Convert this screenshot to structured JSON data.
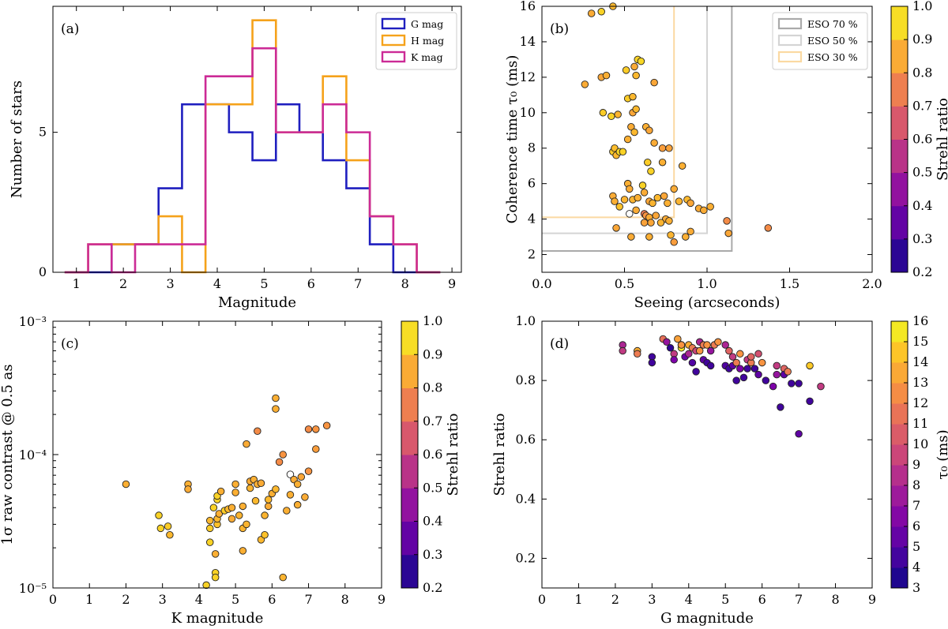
{
  "chart_data": [
    {
      "id": "a",
      "type": "histogram",
      "panel_label": "(a)",
      "xlabel": "Magnitude",
      "ylabel": "Number of stars",
      "xlim": [
        0.5,
        9.2
      ],
      "ylim": [
        0,
        9.5
      ],
      "xticks": [
        1,
        2,
        3,
        4,
        5,
        6,
        7,
        8,
        9
      ],
      "yticks": [
        0,
        5
      ],
      "legend": "top-right",
      "bin_edges": [
        0.75,
        1.25,
        1.75,
        2.25,
        2.75,
        3.25,
        3.75,
        4.25,
        4.75,
        5.25,
        5.75,
        6.25,
        6.75,
        7.25,
        7.75,
        8.25,
        8.75
      ],
      "series": [
        {
          "name": "G mag",
          "color": "#1f1fbf",
          "counts": [
            0,
            0,
            1,
            1,
            3,
            6,
            6,
            5,
            4,
            6,
            5,
            4,
            3,
            1,
            0,
            0
          ]
        },
        {
          "name": "H mag",
          "color": "#f5a21b",
          "counts": [
            0,
            1,
            1,
            1,
            2,
            0,
            6,
            6,
            9,
            5,
            5,
            7,
            4,
            2,
            1,
            0
          ]
        },
        {
          "name": "K mag",
          "color": "#cc2b96",
          "counts": [
            0,
            1,
            0,
            1,
            1,
            1,
            7,
            7,
            8,
            5,
            5,
            6,
            5,
            2,
            1,
            0
          ]
        }
      ]
    },
    {
      "id": "b",
      "type": "scatter",
      "panel_label": "(b)",
      "xlabel": "Seeing (arcseconds)",
      "ylabel": "Coherence time τ₀ (ms)",
      "xlim": [
        0,
        2.0
      ],
      "ylim": [
        1,
        16
      ],
      "xticks": [
        0.0,
        0.5,
        1.0,
        1.5,
        2.0
      ],
      "xticklabels": [
        "0.0",
        "0.5",
        "1.0",
        "1.5",
        "2.0"
      ],
      "yticks": [
        2,
        4,
        6,
        8,
        10,
        12,
        14,
        16
      ],
      "legend": "top-right",
      "colorbar": {
        "label": "Strehl ratio",
        "min": 0.2,
        "max": 1.0,
        "ticks": [
          0.2,
          0.3,
          0.4,
          0.5,
          0.6,
          0.7,
          0.8,
          0.9,
          1.0
        ],
        "ticklabels": [
          "0.2",
          "0.3",
          "0.4",
          "0.5",
          "0.6",
          "0.7",
          "0.8",
          "0.9",
          "1.0"
        ]
      },
      "lines": [
        {
          "name": "ESO 70 %",
          "color": "#aaaaaa",
          "seeing": 1.15,
          "tau0": 2.2
        },
        {
          "name": "ESO 50 %",
          "color": "#d4d4d4",
          "seeing": 1.0,
          "tau0": 3.2
        },
        {
          "name": "ESO 30 %",
          "color": "#fbd9a2",
          "seeing": 0.8,
          "tau0": 4.1
        }
      ],
      "points": [
        [
          0.3,
          15.6,
          0.85
        ],
        [
          0.36,
          15.7,
          0.93
        ],
        [
          0.43,
          16.0,
          0.88
        ],
        [
          0.26,
          11.6,
          0.85
        ],
        [
          0.36,
          12.0,
          0.84
        ],
        [
          0.39,
          12.1,
          0.86
        ],
        [
          0.51,
          12.4,
          0.92
        ],
        [
          0.57,
          12.1,
          0.88
        ],
        [
          0.56,
          12.6,
          0.85
        ],
        [
          0.58,
          13.0,
          0.93
        ],
        [
          0.6,
          12.9,
          0.94
        ],
        [
          0.68,
          11.7,
          0.84
        ],
        [
          0.37,
          10.0,
          0.92
        ],
        [
          0.42,
          9.8,
          0.93
        ],
        [
          0.46,
          9.9,
          0.87
        ],
        [
          0.52,
          10.8,
          0.92
        ],
        [
          0.55,
          10.9,
          0.88
        ],
        [
          0.55,
          10.0,
          0.84
        ],
        [
          0.57,
          10.2,
          0.88
        ],
        [
          0.43,
          7.8,
          0.92
        ],
        [
          0.44,
          8.0,
          0.89
        ],
        [
          0.45,
          7.6,
          0.88
        ],
        [
          0.47,
          7.8,
          0.94
        ],
        [
          0.49,
          7.8,
          0.93
        ],
        [
          0.52,
          8.5,
          0.86
        ],
        [
          0.54,
          9.2,
          0.85
        ],
        [
          0.56,
          8.9,
          0.88
        ],
        [
          0.63,
          9.2,
          0.86
        ],
        [
          0.65,
          9.0,
          0.84
        ],
        [
          0.68,
          8.3,
          0.85
        ],
        [
          0.73,
          8.0,
          0.82
        ],
        [
          0.64,
          7.2,
          0.92
        ],
        [
          0.66,
          6.7,
          0.93
        ],
        [
          0.73,
          7.2,
          0.86
        ],
        [
          0.77,
          8.0,
          0.83
        ],
        [
          0.85,
          7.0,
          0.86
        ],
        [
          0.61,
          5.9,
          0.93
        ],
        [
          0.52,
          6.0,
          0.86
        ],
        [
          0.53,
          5.7,
          0.85
        ],
        [
          0.55,
          5.1,
          0.87
        ],
        [
          0.58,
          5.2,
          0.86
        ],
        [
          0.5,
          5.1,
          0.87
        ],
        [
          0.47,
          4.7,
          0.9
        ],
        [
          0.43,
          5.3,
          0.85
        ],
        [
          0.44,
          5.0,
          0.86
        ],
        [
          0.62,
          5.5,
          0.85
        ],
        [
          0.65,
          5.0,
          0.84
        ],
        [
          0.67,
          4.9,
          0.87
        ],
        [
          0.7,
          5.2,
          0.88
        ],
        [
          0.74,
          5.3,
          0.84
        ],
        [
          0.8,
          5.7,
          0.85
        ],
        [
          0.76,
          4.9,
          0.86
        ],
        [
          0.83,
          5.0,
          0.87
        ],
        [
          0.88,
          5.1,
          0.88
        ],
        [
          0.9,
          4.9,
          0.84
        ],
        [
          0.95,
          4.6,
          0.85
        ],
        [
          0.98,
          4.5,
          0.85
        ],
        [
          1.02,
          4.7,
          0.86
        ],
        [
          0.57,
          4.5,
          0.85
        ],
        [
          0.62,
          4.3,
          0.74
        ],
        [
          0.63,
          4.2,
          0.8
        ],
        [
          0.65,
          4.1,
          0.85
        ],
        [
          0.69,
          4.2,
          0.84
        ],
        [
          0.75,
          4.0,
          0.85
        ],
        [
          0.77,
          3.9,
          0.86
        ],
        [
          0.72,
          3.8,
          0.87
        ],
        [
          0.66,
          3.8,
          0.84
        ],
        [
          0.62,
          3.8,
          0.83
        ],
        [
          0.53,
          4.3,
          1.0
        ],
        [
          0.45,
          3.5,
          0.84
        ],
        [
          0.54,
          3.0,
          0.85
        ],
        [
          0.65,
          3.0,
          0.86
        ],
        [
          0.78,
          3.1,
          0.87
        ],
        [
          0.8,
          2.7,
          0.82
        ],
        [
          0.87,
          3.0,
          0.86
        ],
        [
          0.9,
          3.3,
          0.85
        ],
        [
          1.12,
          3.9,
          0.78
        ],
        [
          1.13,
          3.2,
          0.84
        ],
        [
          1.37,
          3.5,
          0.78
        ]
      ]
    },
    {
      "id": "c",
      "type": "scatter",
      "panel_label": "(c)",
      "xlabel": "K magnitude",
      "ylabel": "1σ raw contrast @ 0.5 as",
      "yscale": "log",
      "xlim": [
        0,
        9
      ],
      "ylim": [
        1e-05,
        0.001
      ],
      "xticks": [
        0,
        1,
        2,
        3,
        4,
        5,
        6,
        7,
        8,
        9
      ],
      "yticklabels": [
        "10⁻⁵",
        "10⁻⁴",
        "10⁻³"
      ],
      "colorbar": {
        "label": "Strehl ratio",
        "min": 0.2,
        "max": 1.0,
        "ticks": [
          0.2,
          0.3,
          0.4,
          0.5,
          0.6,
          0.7,
          0.8,
          0.9,
          1.0
        ],
        "ticklabels": [
          "0.2",
          "0.3",
          "0.4",
          "0.5",
          "0.6",
          "0.7",
          "0.8",
          "0.9",
          "1.0"
        ]
      },
      "points": [
        [
          2.0,
          6e-05,
          0.86
        ],
        [
          2.9,
          3.5e-05,
          0.93
        ],
        [
          2.95,
          2.8e-05,
          0.93
        ],
        [
          3.15,
          2.9e-05,
          0.92
        ],
        [
          3.2,
          2.5e-05,
          0.88
        ],
        [
          3.7,
          6e-05,
          0.86
        ],
        [
          3.7,
          5.5e-05,
          0.85
        ],
        [
          4.2,
          1.05e-05,
          0.93
        ],
        [
          4.3,
          2.2e-05,
          0.93
        ],
        [
          4.3,
          2.8e-05,
          0.92
        ],
        [
          4.3,
          3.2e-05,
          0.88
        ],
        [
          4.4,
          4e-05,
          0.93
        ],
        [
          4.45,
          1.3e-05,
          0.93
        ],
        [
          4.45,
          1.2e-05,
          0.93
        ],
        [
          4.45,
          1.8e-05,
          0.86
        ],
        [
          4.5,
          3e-05,
          0.9
        ],
        [
          4.5,
          3.3e-05,
          0.88
        ],
        [
          4.55,
          3.6e-05,
          0.86
        ],
        [
          4.5,
          4.6e-05,
          0.93
        ],
        [
          4.5,
          4.9e-05,
          0.93
        ],
        [
          4.6,
          5.3e-05,
          0.86
        ],
        [
          4.7,
          3.8e-05,
          0.92
        ],
        [
          4.8,
          3.9e-05,
          0.88
        ],
        [
          4.9,
          4e-05,
          0.86
        ],
        [
          4.9,
          3.3e-05,
          0.85
        ],
        [
          5.0,
          5.2e-05,
          0.86
        ],
        [
          5.0,
          6e-05,
          0.86
        ],
        [
          5.1,
          3.5e-05,
          0.87
        ],
        [
          5.2,
          4.1e-05,
          0.86
        ],
        [
          5.2,
          2.8e-05,
          0.87
        ],
        [
          5.2,
          1.9e-05,
          0.86
        ],
        [
          5.3,
          3e-05,
          0.87
        ],
        [
          5.3,
          0.00012,
          0.85
        ],
        [
          5.4,
          5.6e-05,
          0.87
        ],
        [
          5.4,
          6.3e-05,
          0.85
        ],
        [
          5.5,
          6.5e-05,
          0.86
        ],
        [
          5.55,
          4.5e-05,
          0.88
        ],
        [
          5.6,
          6e-05,
          0.86
        ],
        [
          5.6,
          0.00015,
          0.78
        ],
        [
          5.7,
          6.1e-05,
          0.85
        ],
        [
          5.7,
          2.3e-05,
          0.88
        ],
        [
          5.8,
          2.5e-05,
          0.9
        ],
        [
          5.8,
          3.5e-05,
          0.87
        ],
        [
          5.9,
          4.1e-05,
          0.85
        ],
        [
          5.9,
          4.6e-05,
          0.88
        ],
        [
          6.0,
          5.1e-05,
          0.86
        ],
        [
          6.1,
          0.000265,
          0.86
        ],
        [
          6.1,
          0.00022,
          0.86
        ],
        [
          6.1,
          5.5e-05,
          0.88
        ],
        [
          6.2,
          8.8e-05,
          0.78
        ],
        [
          6.3,
          1.2e-05,
          0.87
        ],
        [
          6.3,
          0.0001,
          0.8
        ],
        [
          6.4,
          3.8e-05,
          0.86
        ],
        [
          6.5,
          7.1e-05,
          1.0
        ],
        [
          6.5,
          5e-05,
          0.86
        ],
        [
          6.6,
          6.5e-05,
          0.85
        ],
        [
          6.7,
          6e-05,
          0.86
        ],
        [
          6.7,
          4.2e-05,
          0.86
        ],
        [
          6.8,
          6.8e-05,
          0.84
        ],
        [
          6.9,
          4.8e-05,
          0.85
        ],
        [
          7.0,
          7.5e-05,
          0.8
        ],
        [
          7.0,
          0.000155,
          0.78
        ],
        [
          7.2,
          0.000155,
          0.8
        ],
        [
          7.2,
          0.00011,
          0.82
        ],
        [
          7.5,
          0.000165,
          0.8
        ]
      ]
    },
    {
      "id": "d",
      "type": "scatter",
      "panel_label": "(d)",
      "xlabel": "G magnitude",
      "ylabel": "Strehl ratio",
      "xlim": [
        0,
        9
      ],
      "ylim": [
        0.1,
        1.0
      ],
      "xticks": [
        0,
        1,
        2,
        3,
        4,
        5,
        6,
        7,
        8,
        9
      ],
      "yticks": [
        0.2,
        0.4,
        0.6,
        0.8,
        1.0
      ],
      "yticklabels": [
        "0.2",
        "0.4",
        "0.6",
        "0.8",
        "1.0"
      ],
      "colorbar": {
        "label": "τ₀ (ms)",
        "min": 2.5,
        "max": 16.5,
        "ticks": [
          3,
          4,
          5,
          6,
          7,
          8,
          9,
          10,
          11,
          12,
          13,
          14,
          15,
          16
        ],
        "ticklabels": [
          "3",
          "4",
          "5",
          "6",
          "7",
          "8",
          "9",
          "10",
          "11",
          "12",
          "13",
          "14",
          "15",
          "16"
        ]
      },
      "points": [
        [
          2.2,
          0.92,
          8.0
        ],
        [
          2.2,
          0.9,
          9.0
        ],
        [
          2.6,
          0.9,
          14.0
        ],
        [
          2.6,
          0.89,
          12.0
        ],
        [
          3.0,
          0.88,
          4.0
        ],
        [
          3.0,
          0.86,
          4.0
        ],
        [
          3.3,
          0.94,
          11.5
        ],
        [
          3.4,
          0.93,
          7.0
        ],
        [
          3.5,
          0.91,
          3.5
        ],
        [
          3.6,
          0.89,
          9.0
        ],
        [
          3.6,
          0.87,
          6.0
        ],
        [
          3.7,
          0.94,
          13.5
        ],
        [
          3.8,
          0.92,
          15.5
        ],
        [
          3.8,
          0.91,
          16.0
        ],
        [
          3.9,
          0.88,
          5.5
        ],
        [
          4.0,
          0.92,
          14.0
        ],
        [
          4.0,
          0.89,
          8.0
        ],
        [
          4.1,
          0.91,
          12.0
        ],
        [
          4.1,
          0.86,
          4.5
        ],
        [
          4.2,
          0.9,
          9.5
        ],
        [
          4.2,
          0.83,
          4.0
        ],
        [
          4.3,
          0.93,
          8.0
        ],
        [
          4.3,
          0.9,
          13.0
        ],
        [
          4.4,
          0.92,
          12.0
        ],
        [
          4.4,
          0.87,
          5.0
        ],
        [
          4.5,
          0.92,
          13.0
        ],
        [
          4.5,
          0.86,
          4.0
        ],
        [
          4.6,
          0.9,
          7.0
        ],
        [
          4.6,
          0.85,
          4.0
        ],
        [
          4.7,
          0.92,
          12.0
        ],
        [
          4.8,
          0.93,
          13.0
        ],
        [
          5.0,
          0.85,
          4.5
        ],
        [
          5.0,
          0.92,
          8.0
        ],
        [
          5.1,
          0.84,
          4.0
        ],
        [
          5.1,
          0.9,
          11.0
        ],
        [
          5.2,
          0.88,
          9.0
        ],
        [
          5.2,
          0.85,
          5.0
        ],
        [
          5.3,
          0.8,
          4.0
        ],
        [
          5.3,
          0.86,
          12.0
        ],
        [
          5.4,
          0.89,
          13.0
        ],
        [
          5.4,
          0.84,
          6.0
        ],
        [
          5.5,
          0.81,
          4.0
        ],
        [
          5.6,
          0.84,
          4.0
        ],
        [
          5.6,
          0.87,
          9.0
        ],
        [
          5.7,
          0.86,
          12.0
        ],
        [
          5.7,
          0.88,
          11.0
        ],
        [
          5.8,
          0.84,
          4.0
        ],
        [
          5.9,
          0.82,
          5.0
        ],
        [
          5.9,
          0.89,
          10.0
        ],
        [
          6.0,
          0.86,
          13.0
        ],
        [
          6.1,
          0.8,
          4.0
        ],
        [
          6.3,
          0.78,
          6.0
        ],
        [
          6.4,
          0.85,
          9.0
        ],
        [
          6.4,
          0.82,
          7.0
        ],
        [
          6.5,
          0.71,
          4.0
        ],
        [
          6.6,
          0.84,
          11.0
        ],
        [
          6.6,
          0.82,
          5.0
        ],
        [
          6.7,
          0.83,
          12.0
        ],
        [
          6.8,
          0.79,
          4.0
        ],
        [
          7.0,
          0.79,
          4.0
        ],
        [
          7.0,
          0.62,
          5.0
        ],
        [
          7.3,
          0.73,
          4.0
        ],
        [
          7.3,
          0.85,
          15.0
        ],
        [
          7.6,
          0.78,
          9.0
        ],
        [
          3.8,
          0.92,
          13.0
        ]
      ]
    }
  ]
}
